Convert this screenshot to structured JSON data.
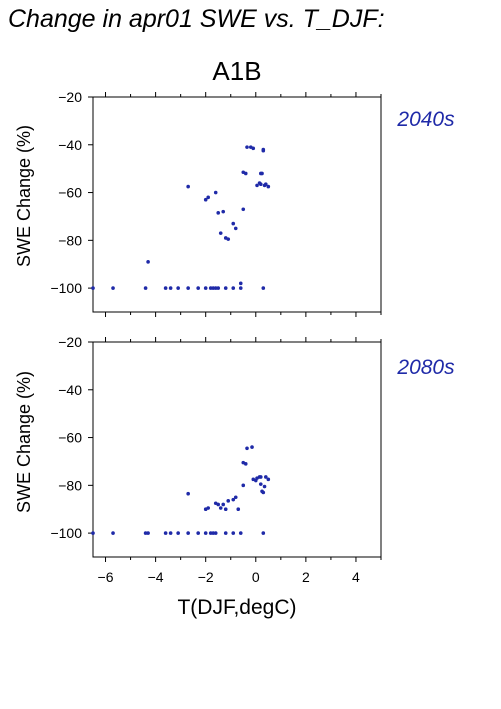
{
  "figure": {
    "title": "Change in apr01 SWE vs. T_DJF:",
    "scenario": "A1B",
    "xlabel": "T(DJF,degC)"
  },
  "colors": {
    "points": "#1f2aa8",
    "period_labels": "#1f2aa8",
    "axes": "#000000"
  },
  "chart_data": [
    {
      "type": "scatter",
      "panel_label": "2040s",
      "xlabel": "T(DJF,degC)",
      "ylabel": "SWE Change (%)",
      "xlim": [
        -6.5,
        5
      ],
      "ylim": [
        -110,
        -20
      ],
      "xticks": [
        -6,
        -4,
        -2,
        0,
        2,
        4
      ],
      "xtick_labels": [
        "−6",
        "−4",
        "−2",
        "0",
        "2",
        "4"
      ],
      "yticks": [
        -100,
        -80,
        -60,
        -40,
        -20
      ],
      "ytick_labels": [
        "−100",
        "−80",
        "−60",
        "−40",
        "−20"
      ],
      "show_xtick_labels": false,
      "grid": false,
      "x": [
        -6.5,
        -5.7,
        -4.4,
        -3.6,
        -3.4,
        -3.1,
        -2.7,
        -2.3,
        -2.0,
        -1.8,
        -1.7,
        -1.6,
        -1.5,
        -1.2,
        -0.9,
        -0.6,
        0.3,
        -4.3,
        -2.7,
        -2.0,
        -1.9,
        -1.6,
        -1.5,
        -1.3,
        -1.4,
        -1.2,
        -1.1,
        -0.9,
        -0.8,
        -0.6,
        -0.5,
        -0.4,
        -0.5,
        -0.35,
        -0.2,
        -0.1,
        0.05,
        0.2,
        0.25,
        0.3,
        0.15,
        0.2,
        0.3,
        0.35,
        0.4,
        0.5
      ],
      "y": [
        -100,
        -100,
        -100,
        -100,
        -100,
        -100,
        -100,
        -100,
        -100,
        -100,
        -100,
        -100,
        -100,
        -100,
        -100,
        -100,
        -100,
        -89,
        -57.5,
        -63,
        -62,
        -60,
        -68.5,
        -68,
        -77,
        -79,
        -79.5,
        -73,
        -75,
        -98,
        -67,
        -52,
        -51.5,
        -41,
        -41,
        -41.5,
        -57,
        -52,
        -52,
        -42,
        -56,
        -56.5,
        -42.5,
        -57,
        -56.5,
        -57.5
      ]
    },
    {
      "type": "scatter",
      "panel_label": "2080s",
      "xlabel": "T(DJF,degC)",
      "ylabel": "SWE Change (%)",
      "xlim": [
        -6.5,
        5
      ],
      "ylim": [
        -110,
        -20
      ],
      "xticks": [
        -6,
        -4,
        -2,
        0,
        2,
        4
      ],
      "xtick_labels": [
        "−6",
        "−4",
        "−2",
        "0",
        "2",
        "4"
      ],
      "yticks": [
        -100,
        -80,
        -60,
        -40,
        -20
      ],
      "ytick_labels": [
        "−100",
        "−80",
        "−60",
        "−40",
        "−20"
      ],
      "show_xtick_labels": true,
      "grid": false,
      "x": [
        -6.5,
        -5.7,
        -4.4,
        -4.3,
        -3.6,
        -3.4,
        -3.1,
        -2.7,
        -2.3,
        -2.0,
        -1.8,
        -1.7,
        -1.6,
        -1.2,
        -0.9,
        -0.6,
        0.3,
        -2.7,
        -2.0,
        -1.9,
        -1.6,
        -1.5,
        -1.4,
        -1.3,
        -1.2,
        -1.1,
        -0.9,
        -0.8,
        -0.7,
        -0.5,
        -0.5,
        -0.4,
        -0.35,
        -0.15,
        -0.1,
        0.0,
        0.05,
        0.15,
        0.2,
        0.25,
        0.3,
        0.35,
        0.4,
        0.5,
        0.2
      ],
      "y": [
        -100,
        -100,
        -100,
        -100,
        -100,
        -100,
        -100,
        -100,
        -100,
        -100,
        -100,
        -100,
        -100,
        -100,
        -100,
        -100,
        -100,
        -83.5,
        -90,
        -89.5,
        -87.5,
        -88,
        -89.5,
        -88,
        -90,
        -86.5,
        -86,
        -85,
        -90,
        -80,
        -70.5,
        -71,
        -64.5,
        -64,
        -77.5,
        -78,
        -77,
        -76.5,
        -76.5,
        -82.5,
        -83,
        -80.5,
        -76.5,
        -77.5,
        -79.5
      ]
    }
  ]
}
